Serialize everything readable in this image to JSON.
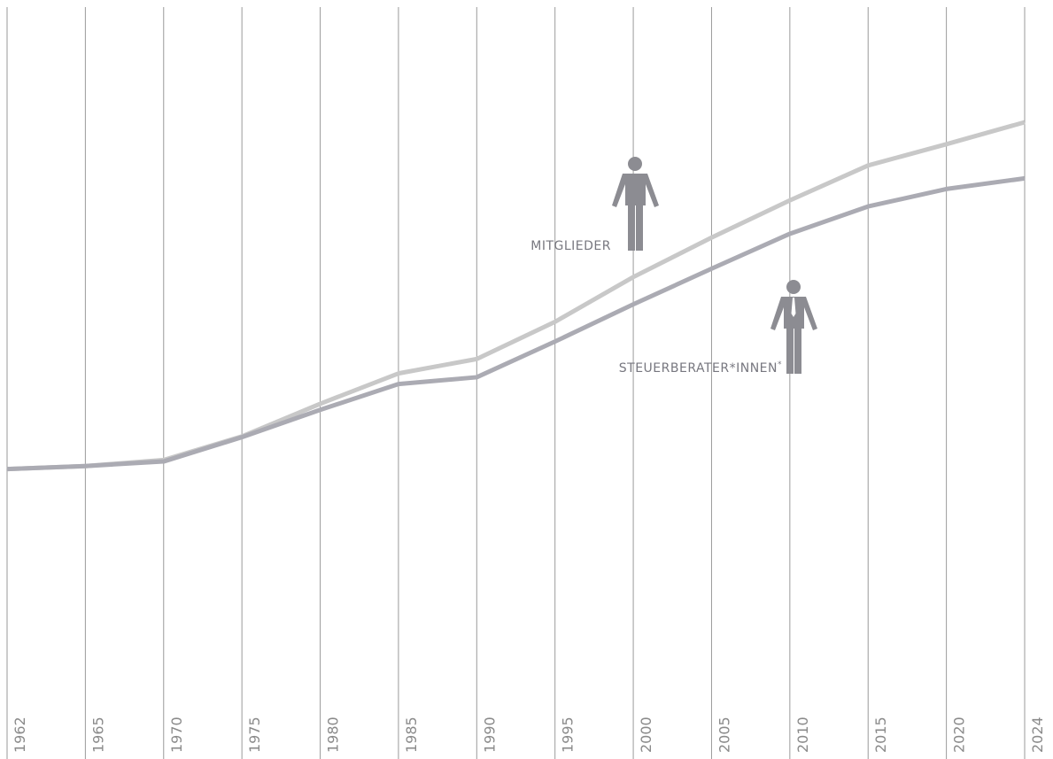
{
  "chart_data": {
    "type": "line",
    "categories": [
      "1962",
      "1965",
      "1970",
      "1975",
      "1980",
      "1985",
      "1990",
      "1995",
      "2000",
      "2005",
      "2010",
      "2015",
      "2020",
      "2024"
    ],
    "ylim": [
      0,
      100
    ],
    "series": [
      {
        "name": "MITGLIEDER",
        "color": "#c8c8c8",
        "values": [
          38.2,
          38.6,
          39.4,
          42.5,
          46.8,
          50.8,
          52.7,
          57.6,
          63.5,
          68.7,
          73.6,
          78.2,
          81.0,
          83.9
        ]
      },
      {
        "name": "STEUERBERATER*INNEN",
        "color": "#ababb3",
        "values": [
          38.2,
          38.6,
          39.2,
          42.4,
          46.0,
          49.4,
          50.3,
          55.0,
          59.9,
          64.6,
          69.2,
          72.8,
          75.1,
          76.5
        ]
      }
    ],
    "footnote_mark": "*"
  }
}
